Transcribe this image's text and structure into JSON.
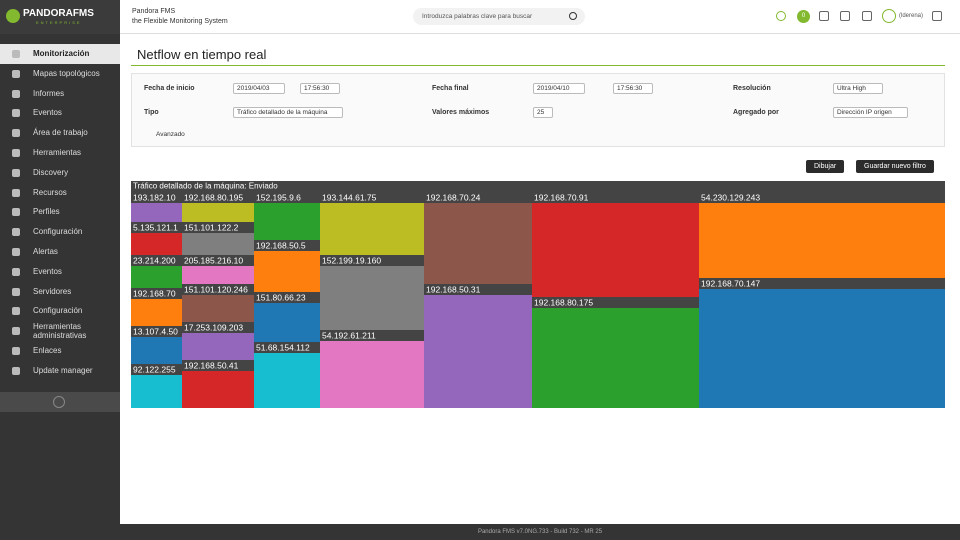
{
  "header": {
    "logo": "PANDORAFMS",
    "logo_sub": "ENTERPRISE",
    "product": "Pandora FMS",
    "tagline": "the Flexible Monitoring System",
    "search_placeholder": "Introduzca palabras clave para buscar",
    "badge": "0",
    "user": "(lderena)"
  },
  "menu": [
    "Monitorización",
    "Mapas topológicos",
    "Informes",
    "Eventos",
    "Área de trabajo",
    "Herramientas",
    "Discovery",
    "Recursos",
    "Perfiles",
    "Configuración",
    "Alertas",
    "Eventos",
    "Servidores",
    "Configuración",
    "Herramientas administrativas",
    "Enlaces",
    "Update manager"
  ],
  "page_title": "Netflow en tiempo real",
  "filter": {
    "start_label": "Fecha de inicio",
    "start_date": "2019/04/03",
    "start_time": "17:56:30",
    "end_label": "Fecha final",
    "end_date": "2019/04/10",
    "end_time": "17:56:30",
    "resolution_label": "Resolución",
    "resolution": "Ultra High",
    "type_label": "Tipo",
    "type": "Tráfico detallado de la máquina",
    "max_label": "Valores máximos",
    "max": "25",
    "aggregate_label": "Agregado por",
    "aggregate": "Dirección IP origen",
    "advanced": "Avanzado"
  },
  "buttons": {
    "draw": "Dibujar",
    "save": "Guardar nuevo filtro"
  },
  "treemap": {
    "title": "Tráfico detallado de la máquina: Enviado",
    "cells": [
      {
        "label": "193.182.10",
        "color": "#9467bd"
      },
      {
        "label": "5.135.121.1",
        "color": "#d62728"
      },
      {
        "label": "23.214.200",
        "color": "#2ca02c"
      },
      {
        "label": "192.168.70",
        "color": "#ff7f0e"
      },
      {
        "label": "13.107.4.50",
        "color": "#1f77b4"
      },
      {
        "label": "92.122.255",
        "color": "#17becf"
      },
      {
        "label": "192.168.80.195",
        "color": "#bcbd22"
      },
      {
        "label": "151.101.122.2",
        "color": "#7f7f7f"
      },
      {
        "label": "205.185.216.10",
        "color": "#e377c2"
      },
      {
        "label": "151.101.120.246",
        "color": "#8c564b"
      },
      {
        "label": "17.253.109.203",
        "color": "#9467bd"
      },
      {
        "label": "192.168.50.41",
        "color": "#d62728"
      },
      {
        "label": "152.195.9.6",
        "color": "#2ca02c"
      },
      {
        "label": "192.168.50.5",
        "color": "#ff7f0e"
      },
      {
        "label": "151.80.66.23",
        "color": "#1f77b4"
      },
      {
        "label": "51.68.154.112",
        "color": "#17becf"
      },
      {
        "label": "193.144.61.75",
        "color": "#bcbd22"
      },
      {
        "label": "152.199.19.160",
        "color": "#7f7f7f"
      },
      {
        "label": "54.192.61.211",
        "color": "#e377c2"
      },
      {
        "label": "192.168.70.24",
        "color": "#8c564b"
      },
      {
        "label": "192.168.50.31",
        "color": "#9467bd"
      },
      {
        "label": "192.168.70.91",
        "color": "#d62728"
      },
      {
        "label": "192.168.80.175",
        "color": "#2ca02c"
      },
      {
        "label": "54.230.129.243",
        "color": "#ff7f0e"
      },
      {
        "label": "192.168.70.147",
        "color": "#1f77b4"
      }
    ]
  },
  "footer": "Pandora FMS v7.0NG.733 - Build 732 - MR 25"
}
